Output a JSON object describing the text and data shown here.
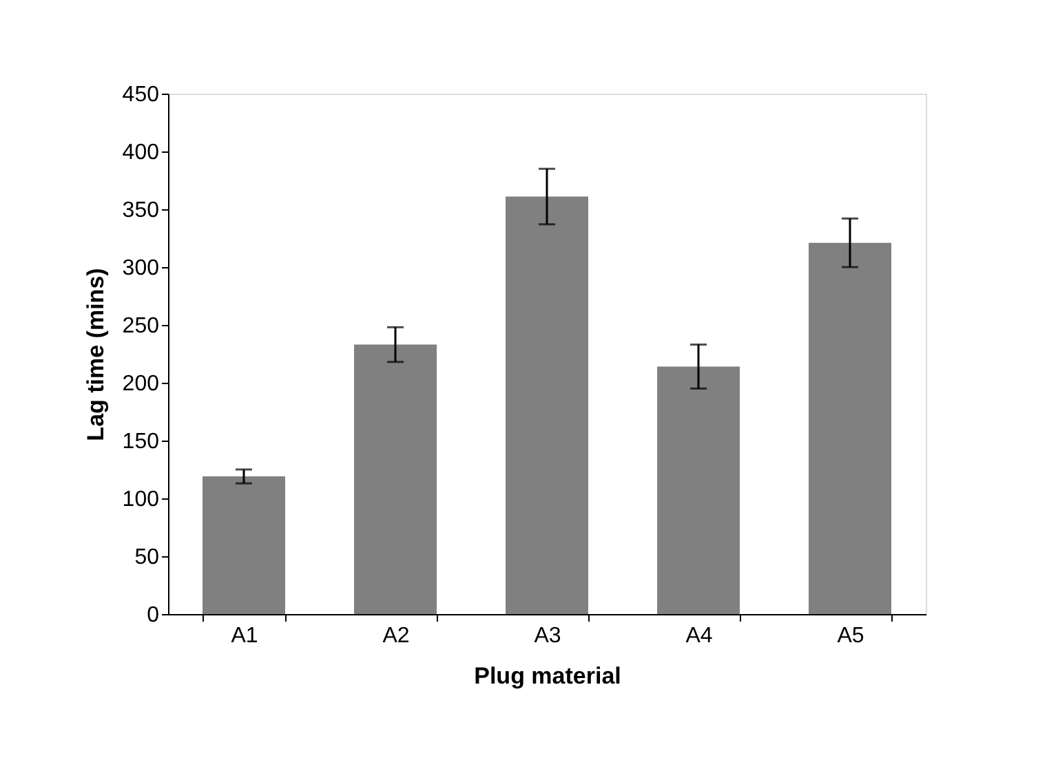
{
  "chart_data": {
    "type": "bar",
    "xlabel": "Plug material",
    "ylabel": "Lag time (mins)",
    "categories": [
      "A1",
      "A2",
      "A3",
      "A4",
      "A5"
    ],
    "values": [
      119,
      233,
      361,
      214,
      321
    ],
    "errors": [
      6,
      15,
      24,
      19,
      21
    ],
    "color": "#808080",
    "ylim": [
      0,
      450
    ],
    "yticks": [
      0,
      50,
      100,
      150,
      200,
      250,
      300,
      350,
      400,
      450
    ],
    "grid": false
  }
}
